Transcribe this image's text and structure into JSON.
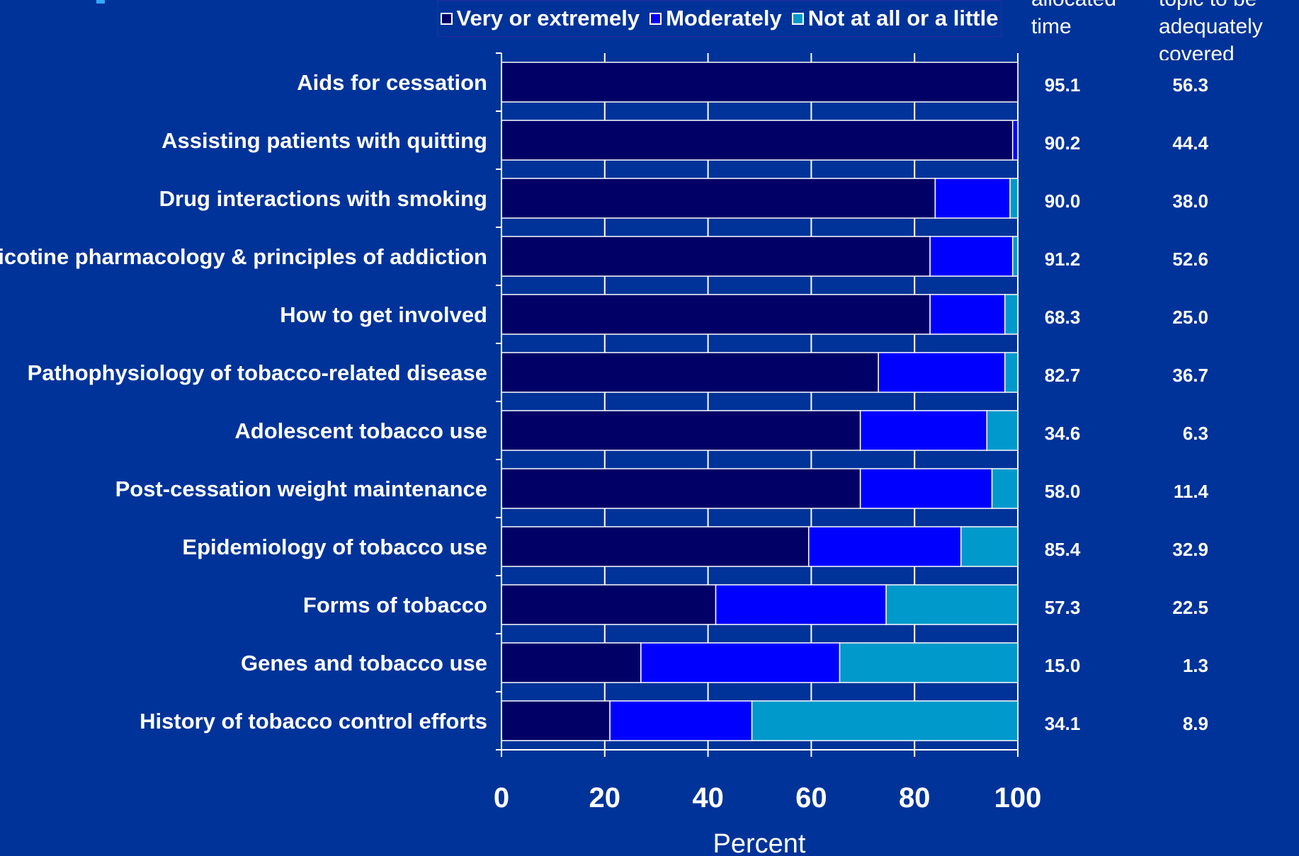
{
  "legend": {
    "items": [
      {
        "label": "Very or extremely",
        "color": "#000066"
      },
      {
        "label": "Moderately",
        "color": "#0000FF"
      },
      {
        "label": "Not at all or a little",
        "color": "#0099CC"
      }
    ]
  },
  "column_headers": {
    "allocated_time": "allocated\ntime",
    "adequately_covered": "topic to be\nadequately\ncovered"
  },
  "chart_data": {
    "type": "bar",
    "orientation": "horizontal",
    "stacked": true,
    "categories": [
      "Aids for cessation",
      "Assisting patients with quitting",
      "Drug interactions with smoking",
      "Nicotine pharmacology & principles of addiction",
      "How to get involved",
      "Pathophysiology of tobacco-related disease",
      "Adolescent tobacco use",
      "Post-cessation weight maintenance",
      "Epidemiology of tobacco use",
      "Forms of tobacco",
      "Genes and tobacco use",
      "History of tobacco control efforts"
    ],
    "series": [
      {
        "name": "Very or extremely",
        "color": "#000066",
        "values": [
          100,
          99,
          84,
          83,
          83,
          73,
          69.5,
          69.5,
          59.5,
          41.5,
          27,
          21
        ]
      },
      {
        "name": "Moderately",
        "color": "#0000FF",
        "values": [
          0,
          1,
          14.5,
          16,
          14.5,
          24.5,
          24.5,
          25.5,
          29.5,
          33,
          38.5,
          27.5
        ]
      },
      {
        "name": "Not at all or a little",
        "color": "#0099CC",
        "values": [
          0,
          0,
          1.5,
          1,
          2.5,
          2.5,
          6,
          5,
          11,
          25.5,
          34.5,
          51.5
        ]
      }
    ],
    "allocated_time": [
      "95.1",
      "90.2",
      "90.0",
      "91.2",
      "68.3",
      "82.7",
      "34.6",
      "58.0",
      "85.4",
      "57.3",
      "15.0",
      "34.1"
    ],
    "adequately_covered": [
      "56.3",
      "44.4",
      "38.0",
      "52.6",
      "25.0",
      "36.7",
      "6.3",
      "11.4",
      "32.9",
      "22.5",
      "1.3",
      "8.9"
    ],
    "xlabel": "Percent",
    "xlim": [
      0,
      100
    ],
    "xticks": [
      "0",
      "20",
      "40",
      "60",
      "80",
      "100"
    ],
    "grid": true,
    "legend_position": "top"
  }
}
